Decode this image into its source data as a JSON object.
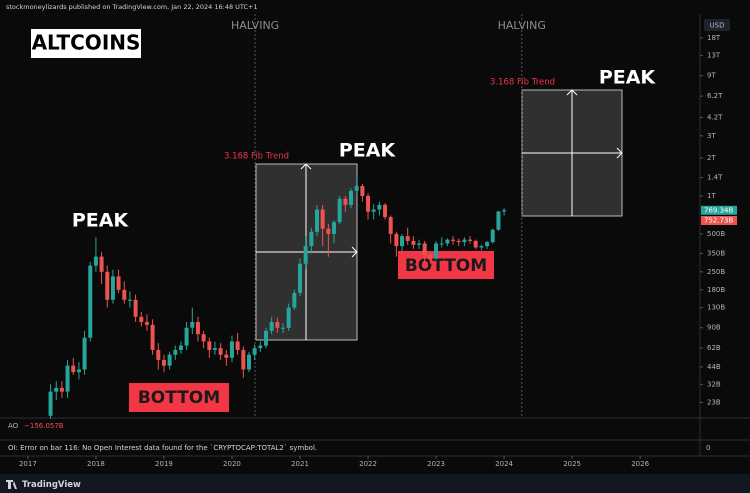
{
  "header": "stockmoneylizards published on TradingView.com, Jan 22, 2024 16:48 UTC+1",
  "currency": "USD",
  "chart_data": {
    "type": "candlestick",
    "title": "ALTCOINS",
    "log_scale": true,
    "up_color": "#26a69a",
    "down_color": "#ef5350",
    "x": [
      2017.333,
      2017.417,
      2017.5,
      2017.583,
      2017.667,
      2017.75,
      2017.833,
      2017.917,
      2018.0,
      2018.083,
      2018.167,
      2018.25,
      2018.333,
      2018.417,
      2018.5,
      2018.583,
      2018.667,
      2018.75,
      2018.833,
      2018.917,
      2019.0,
      2019.083,
      2019.167,
      2019.25,
      2019.333,
      2019.417,
      2019.5,
      2019.583,
      2019.667,
      2019.75,
      2019.833,
      2019.917,
      2020.0,
      2020.083,
      2020.167,
      2020.25,
      2020.333,
      2020.417,
      2020.5,
      2020.583,
      2020.667,
      2020.75,
      2020.833,
      2020.917,
      2021.0,
      2021.083,
      2021.167,
      2021.25,
      2021.333,
      2021.417,
      2021.5,
      2021.583,
      2021.667,
      2021.75,
      2021.833,
      2021.917,
      2022.0,
      2022.083,
      2022.167,
      2022.25,
      2022.333,
      2022.417,
      2022.5,
      2022.583,
      2022.667,
      2022.75,
      2022.833,
      2022.917,
      2023.0,
      2023.083,
      2023.167,
      2023.25,
      2023.333,
      2023.417,
      2023.5,
      2023.583,
      2023.667,
      2023.75,
      2023.833,
      2023.917,
      2024.0
    ],
    "open": [
      18,
      28,
      30,
      28,
      45,
      40,
      42,
      75,
      280,
      330,
      250,
      150,
      230,
      180,
      150,
      150,
      110,
      100,
      95,
      60,
      50,
      45,
      55,
      60,
      65,
      90,
      100,
      80,
      70,
      60,
      62,
      55,
      52,
      70,
      60,
      42,
      55,
      62,
      65,
      85,
      100,
      90,
      90,
      130,
      170,
      290,
      400,
      520,
      780,
      550,
      500,
      620,
      950,
      850,
      1100,
      1200,
      1000,
      750,
      780,
      850,
      680,
      500,
      400,
      480,
      440,
      410,
      420,
      340,
      320,
      420,
      420,
      450,
      440,
      430,
      450,
      440,
      390,
      400,
      430,
      540,
      752.73
    ],
    "high": [
      32,
      34,
      34,
      50,
      52,
      48,
      85,
      300,
      470,
      360,
      280,
      260,
      260,
      210,
      175,
      165,
      120,
      115,
      105,
      68,
      55,
      58,
      65,
      70,
      100,
      130,
      110,
      85,
      75,
      70,
      68,
      60,
      78,
      82,
      64,
      58,
      66,
      70,
      90,
      110,
      108,
      98,
      140,
      180,
      320,
      480,
      560,
      850,
      850,
      600,
      640,
      1000,
      1000,
      1150,
      1450,
      1250,
      1050,
      860,
      900,
      880,
      700,
      520,
      500,
      560,
      480,
      450,
      440,
      350,
      440,
      470,
      460,
      480,
      460,
      470,
      480,
      450,
      410,
      440,
      550,
      760,
      800
    ],
    "low": [
      17,
      24,
      25,
      25,
      38,
      35,
      38,
      70,
      250,
      200,
      130,
      140,
      170,
      140,
      130,
      100,
      92,
      85,
      55,
      42,
      40,
      42,
      50,
      56,
      60,
      80,
      70,
      62,
      52,
      55,
      50,
      45,
      48,
      55,
      36,
      40,
      50,
      58,
      62,
      80,
      82,
      82,
      85,
      125,
      160,
      260,
      350,
      480,
      400,
      330,
      420,
      600,
      750,
      800,
      1000,
      900,
      650,
      650,
      700,
      650,
      420,
      330,
      360,
      410,
      380,
      380,
      300,
      290,
      310,
      390,
      400,
      410,
      400,
      400,
      420,
      380,
      370,
      380,
      420,
      530,
      700
    ],
    "close": [
      28,
      30,
      28,
      45,
      40,
      42,
      75,
      280,
      330,
      250,
      150,
      230,
      180,
      150,
      150,
      110,
      100,
      95,
      60,
      50,
      45,
      55,
      60,
      65,
      90,
      100,
      80,
      70,
      60,
      62,
      55,
      52,
      70,
      60,
      42,
      55,
      62,
      65,
      85,
      100,
      90,
      90,
      130,
      170,
      290,
      400,
      520,
      780,
      550,
      500,
      620,
      950,
      850,
      1100,
      1200,
      1000,
      750,
      780,
      850,
      680,
      500,
      400,
      480,
      440,
      410,
      420,
      340,
      320,
      420,
      420,
      450,
      440,
      430,
      450,
      440,
      390,
      400,
      430,
      540,
      752.73,
      769.34
    ],
    "xlim": [
      2016.59,
      2026.88
    ],
    "xticks": [
      2017,
      2018,
      2019,
      2020,
      2021,
      2022,
      2023,
      2024,
      2025,
      2026
    ],
    "ylim": [
      17.3,
      27800
    ],
    "yticks": [
      {
        "value": 23,
        "label": "23B"
      },
      {
        "value": 32,
        "label": "32B"
      },
      {
        "value": 44,
        "label": "44B"
      },
      {
        "value": 62,
        "label": "62B"
      },
      {
        "value": 90,
        "label": "90B"
      },
      {
        "value": 130,
        "label": "130B"
      },
      {
        "value": 180,
        "label": "180B"
      },
      {
        "value": 250,
        "label": "250B"
      },
      {
        "value": 350,
        "label": "350B"
      },
      {
        "value": 500,
        "label": "500B"
      },
      {
        "value": 1000,
        "label": "1T"
      },
      {
        "value": 1400,
        "label": "1.4T"
      },
      {
        "value": 2000,
        "label": "2T"
      },
      {
        "value": 3000,
        "label": "3T"
      },
      {
        "value": 4200,
        "label": "4.2T"
      },
      {
        "value": 6200,
        "label": "6.2T"
      },
      {
        "value": 9000,
        "label": "9T"
      },
      {
        "value": 13000,
        "label": "13T"
      },
      {
        "value": 18000,
        "label": "18T"
      }
    ],
    "last_price": {
      "value": 769.34,
      "label": "769.34B"
    },
    "prev_close": {
      "value": 752.73,
      "label": "752.73B"
    },
    "halvings": [
      {
        "label": "HALVING",
        "x": 2020.34
      },
      {
        "label": "HALVING",
        "x": 2024.26
      }
    ],
    "annotations": {
      "peak": "PEAK",
      "bottom": "BOTTOM",
      "fib": "3.168 Fib Trend"
    }
  },
  "indicator": {
    "name": "AO",
    "value": "−156.057B",
    "axis": [
      0
    ]
  },
  "error": "OI: Error on bar 116: No Open Interest data found for the `CRYPTOCAP:TOTAL2` symbol.",
  "footer": "TradingView"
}
